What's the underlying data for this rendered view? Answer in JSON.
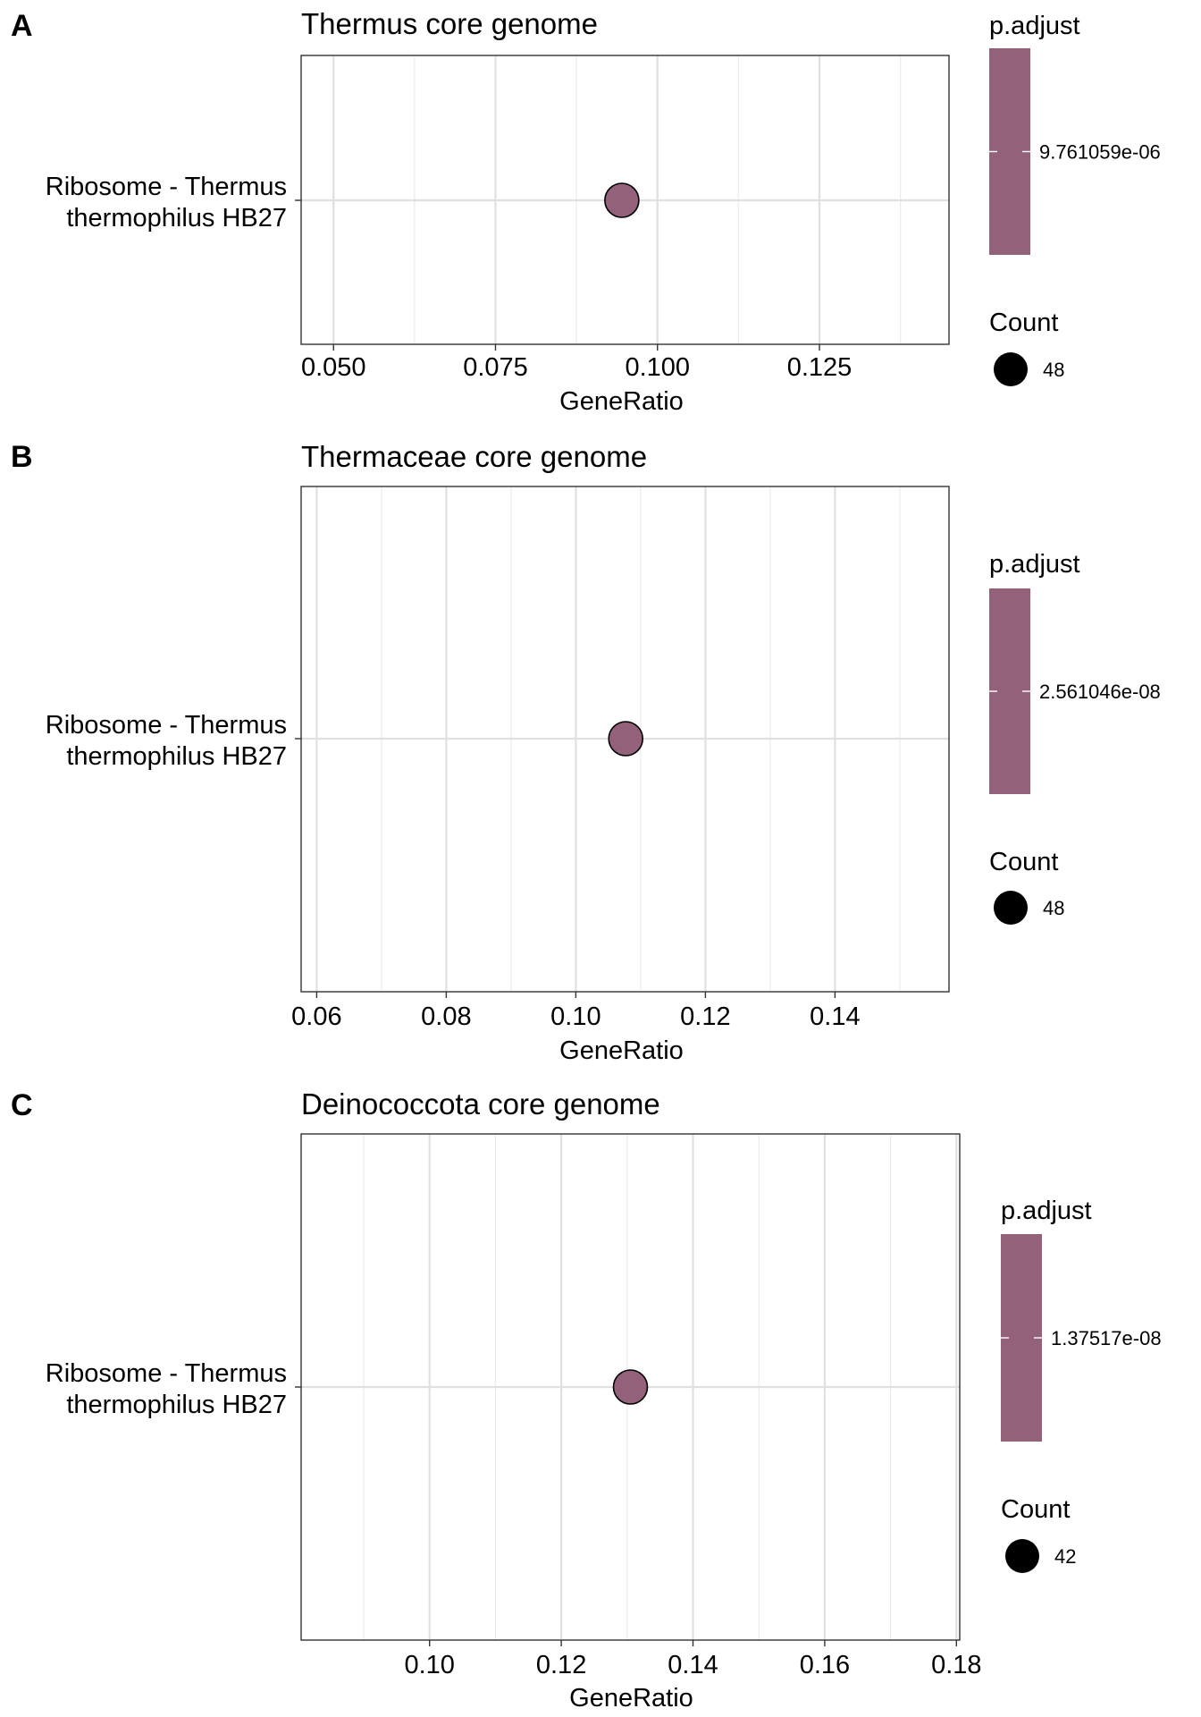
{
  "chart_data": [
    {
      "type": "scatter",
      "panel": "A",
      "title": "Thermus core genome",
      "xlabel": "GeneRatio",
      "ylabel": "",
      "categories": [
        "Ribosome - Thermus thermophilus HB27"
      ],
      "category_lines": [
        "Ribosome - Thermus",
        "thermophilus HB27"
      ],
      "xlim": [
        0.045,
        0.145
      ],
      "xticks": [
        0.05,
        0.075,
        0.1,
        0.125
      ],
      "xtick_labels": [
        "0.050",
        "0.075",
        "0.100",
        "0.125"
      ],
      "xminor": [
        0.0625,
        0.0875,
        0.1125,
        0.1375
      ],
      "points": [
        {
          "category": "Ribosome - Thermus thermophilus HB27",
          "x": 0.0945,
          "count": 48,
          "p_adjust": "9.761059e-06"
        }
      ],
      "grid": true,
      "legend": {
        "position": "right",
        "color_title": "p.adjust",
        "color_label": "9.761059e-06",
        "size_title": "Count",
        "size_label": "48"
      },
      "point_color": "#93617a"
    },
    {
      "type": "scatter",
      "panel": "B",
      "title": "Thermaceae core genome",
      "xlabel": "GeneRatio",
      "ylabel": "",
      "categories": [
        "Ribosome - Thermus thermophilus HB27"
      ],
      "category_lines": [
        "Ribosome - Thermus",
        "thermophilus HB27"
      ],
      "xlim": [
        0.0576,
        0.1576
      ],
      "xticks": [
        0.06,
        0.08,
        0.1,
        0.12,
        0.14
      ],
      "xtick_labels": [
        "0.06",
        "0.08",
        "0.10",
        "0.12",
        "0.14"
      ],
      "xminor": [
        0.07,
        0.09,
        0.11,
        0.13,
        0.15
      ],
      "points": [
        {
          "category": "Ribosome - Thermus thermophilus HB27",
          "x": 0.1077,
          "count": 48,
          "p_adjust": "2.561046e-08"
        }
      ],
      "grid": true,
      "legend": {
        "position": "right",
        "color_title": "p.adjust",
        "color_label": "2.561046e-08",
        "size_title": "Count",
        "size_label": "48"
      },
      "point_color": "#93617a"
    },
    {
      "type": "scatter",
      "panel": "C",
      "title": "Deinococcota core genome",
      "xlabel": "GeneRatio",
      "ylabel": "",
      "categories": [
        "Ribosome - Thermus thermophilus HB27"
      ],
      "category_lines": [
        "Ribosome - Thermus",
        "thermophilus HB27"
      ],
      "xlim": [
        0.0805,
        0.1805
      ],
      "xticks": [
        0.1,
        0.12,
        0.14,
        0.16,
        0.18
      ],
      "xtick_labels": [
        "0.10",
        "0.12",
        "0.14",
        "0.16",
        "0.18"
      ],
      "xminor": [
        0.09,
        0.11,
        0.13,
        0.15,
        0.17
      ],
      "points": [
        {
          "category": "Ribosome - Thermus thermophilus HB27",
          "x": 0.1305,
          "count": 42,
          "p_adjust": "1.37517e-08"
        }
      ],
      "grid": true,
      "legend": {
        "position": "right",
        "color_title": "p.adjust",
        "color_label": "1.37517e-08",
        "size_title": "Count",
        "size_label": "42"
      },
      "point_color": "#93617a"
    }
  ]
}
